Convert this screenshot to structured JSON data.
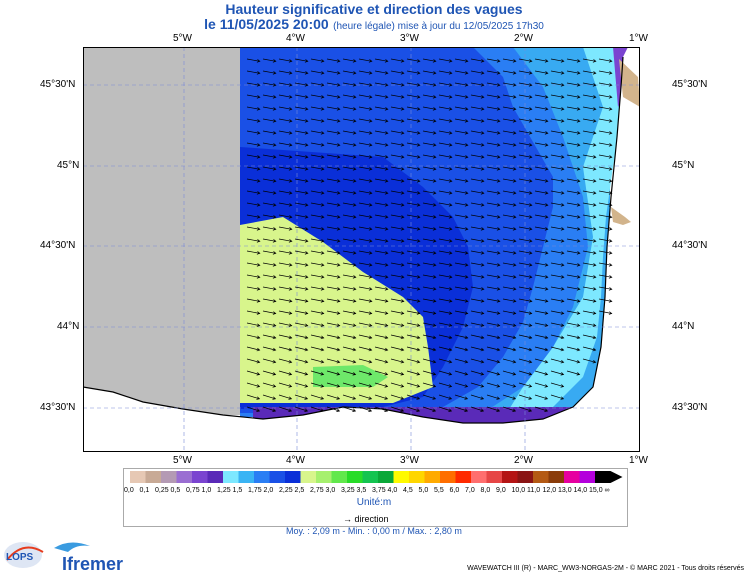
{
  "title": "Hauteur significative et direction des vagues",
  "subtitle_date": "le 11/05/2025 20:00",
  "subtitle_note": "(heure légale) mise à jour du 12/05/2025 17h30",
  "lon_ticks": [
    "5°W",
    "4°W",
    "3°W",
    "2°W",
    "1°W"
  ],
  "lat_ticks": [
    "45°30'N",
    "45°N",
    "44°30'N",
    "44°N",
    "43°30'N"
  ],
  "map": {
    "land_color": "#bebebe",
    "coast_land_color": "#d2b48c",
    "arrow_color": "#000000",
    "zones": [
      "#4a6fe8",
      "#1a4de6",
      "#0a2fd8",
      "#d8f58c",
      "#6ee86a",
      "#38aaf2",
      "#7de8ff",
      "#8a3cd0"
    ]
  },
  "legend": {
    "values": [
      "0,0",
      "0,1",
      "0,25",
      "0,5",
      "0,75",
      "1,0",
      "1,25",
      "1,5",
      "1,75",
      "2,0",
      "2,25",
      "2,5",
      "2,75",
      "3,0",
      "3,25",
      "3,5",
      "3,75",
      "4,0",
      "4,5",
      "5,0",
      "5,5",
      "6,0",
      "7,0",
      "8,0",
      "9,0",
      "10,0",
      "11,0",
      "12,0",
      "13,0",
      "14,0",
      "15,0",
      "∞"
    ],
    "colors": [
      "#e6c8b4",
      "#c8aa96",
      "#b49ab4",
      "#9a6ed2",
      "#7a44d0",
      "#5a2ab8",
      "#7de8ff",
      "#3ab4f4",
      "#2a7ef4",
      "#1a50e6",
      "#0a2fd8",
      "#d8f58c",
      "#a6f06e",
      "#62e84c",
      "#28dc28",
      "#14c450",
      "#0aa838",
      "#fffa00",
      "#ffd600",
      "#ffaa00",
      "#ff6e00",
      "#ff2a00",
      "#ff6e6e",
      "#e64646",
      "#b41414",
      "#8a1414",
      "#b45a14",
      "#8a3c0a",
      "#e600a0",
      "#b400dc",
      "#000000"
    ],
    "unit": "Unité:m",
    "direction_label": "direction",
    "stats": "Moy. : 2,09 m   -   Min. : 0,00 m / Max. : 2,80 m"
  },
  "credit": "WAVEWATCH III (R) - MARC_WW3-NORGAS-2M - © MARC 2021 - Tous droits réservés",
  "logo_lops": "LOPS",
  "logo_ifremer": "Ifremer"
}
